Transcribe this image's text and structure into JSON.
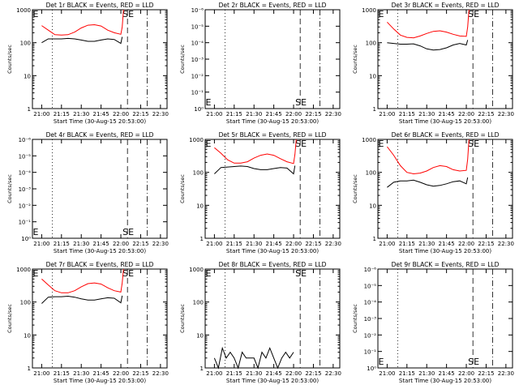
{
  "colors": {
    "events": "#000000",
    "lld": "#ff0000",
    "axis": "#000000"
  },
  "chart_data": [
    {
      "type": "line",
      "title": "Det 1r BLACK = Events, RED = LLD",
      "xlabel": "Start Time (30-Aug-15 20:53:00)",
      "ylabel": "Counts/sec",
      "x_ticks": [
        "21:00",
        "21:15",
        "21:30",
        "21:45",
        "22:00",
        "22:15",
        "22:30"
      ],
      "y_ticks": [
        "1",
        "10",
        "100",
        "1000"
      ],
      "ylim": [
        1,
        1000
      ],
      "log_scale": true,
      "has_data": true,
      "markers": [
        {
          "label": "E",
          "time": "20:53"
        },
        {
          "label": "SE",
          "time": "22:01"
        }
      ],
      "series": [
        {
          "color": "red",
          "x": [
            "21:00",
            "21:05",
            "21:10",
            "21:15",
            "21:20",
            "21:25",
            "21:30",
            "21:35",
            "21:40",
            "21:45",
            "21:50",
            "21:55",
            "22:00",
            "22:01",
            "22:02"
          ],
          "y": [
            330,
            240,
            175,
            170,
            175,
            210,
            280,
            340,
            350,
            320,
            240,
            200,
            180,
            300,
            1000
          ]
        },
        {
          "color": "black",
          "x": [
            "21:00",
            "21:05",
            "21:10",
            "21:15",
            "21:20",
            "21:25",
            "21:30",
            "21:35",
            "21:40",
            "21:45",
            "21:50",
            "21:55",
            "22:00",
            "22:01"
          ],
          "y": [
            100,
            130,
            130,
            130,
            135,
            130,
            120,
            110,
            110,
            120,
            130,
            125,
            95,
            150
          ]
        }
      ]
    },
    {
      "type": "line",
      "title": "Det 2r BLACK = Events, RED = LLD",
      "xlabel": "Start Time (30-Aug-15 20:53:00)",
      "ylabel": "Counts/sec",
      "x_ticks": [
        "21:00",
        "21:15",
        "21:30",
        "21:45",
        "22:00",
        "22:15",
        "22:30"
      ],
      "y_ticks": [
        "10⁰",
        "10⁻¹",
        "10⁻²",
        "10⁻³",
        "10⁻⁴",
        "10⁻⁵",
        "10⁻⁶"
      ],
      "log_scale": true,
      "has_data": false,
      "markers": [
        {
          "label": "E",
          "time": "20:53"
        },
        {
          "label": "SE",
          "time": "22:01"
        }
      ],
      "series": []
    },
    {
      "type": "line",
      "title": "Det 3r BLACK = Events, RED = LLD",
      "xlabel": "Start Time (30-Aug-15 20:53:00)",
      "ylabel": "Counts/sec",
      "x_ticks": [
        "21:00",
        "21:15",
        "21:30",
        "21:45",
        "22:00",
        "22:15",
        "22:30"
      ],
      "y_ticks": [
        "1",
        "10",
        "100",
        "1000"
      ],
      "ylim": [
        1,
        1000
      ],
      "log_scale": true,
      "has_data": true,
      "markers": [
        {
          "label": "E",
          "time": "20:53"
        },
        {
          "label": "SE",
          "time": "22:01"
        }
      ],
      "series": [
        {
          "color": "red",
          "x": [
            "21:00",
            "21:05",
            "21:10",
            "21:15",
            "21:20",
            "21:25",
            "21:30",
            "21:35",
            "21:40",
            "21:45",
            "21:50",
            "21:55",
            "22:00",
            "22:01",
            "22:02"
          ],
          "y": [
            420,
            260,
            170,
            145,
            140,
            160,
            190,
            220,
            230,
            210,
            180,
            160,
            155,
            300,
            1000
          ]
        },
        {
          "color": "black",
          "x": [
            "21:00",
            "21:05",
            "21:10",
            "21:15",
            "21:20",
            "21:25",
            "21:30",
            "21:35",
            "21:40",
            "21:45",
            "21:50",
            "21:55",
            "22:00",
            "22:01"
          ],
          "y": [
            100,
            95,
            90,
            90,
            92,
            80,
            65,
            60,
            62,
            70,
            85,
            95,
            85,
            120
          ]
        }
      ]
    },
    {
      "type": "line",
      "title": "Det 4r BLACK = Events, RED = LLD",
      "xlabel": "Start Time (30-Aug-15 20:53:00)",
      "ylabel": "Counts/sec",
      "x_ticks": [
        "21:00",
        "21:15",
        "21:30",
        "21:45",
        "22:00",
        "22:15",
        "22:30"
      ],
      "y_ticks": [
        "10⁰",
        "10⁻¹",
        "10⁻²",
        "10⁻³",
        "10⁻⁴",
        "10⁻⁵",
        "10⁻⁶"
      ],
      "log_scale": true,
      "has_data": false,
      "markers": [
        {
          "label": "E",
          "time": "20:53"
        },
        {
          "label": "SE",
          "time": "22:01"
        }
      ],
      "series": []
    },
    {
      "type": "line",
      "title": "Det 5r BLACK = Events, RED = LLD",
      "xlabel": "Start Time (30-Aug-15 20:53:00)",
      "ylabel": "Counts/sec",
      "x_ticks": [
        "21:00",
        "21:15",
        "21:30",
        "21:45",
        "22:00",
        "22:15",
        "22:30"
      ],
      "y_ticks": [
        "1",
        "10",
        "100",
        "1000"
      ],
      "ylim": [
        1,
        1000
      ],
      "log_scale": true,
      "has_data": true,
      "markers": [
        {
          "label": "E",
          "time": "20:53"
        },
        {
          "label": "SE",
          "time": "22:01"
        }
      ],
      "series": [
        {
          "color": "red",
          "x": [
            "21:00",
            "21:05",
            "21:10",
            "21:15",
            "21:20",
            "21:25",
            "21:30",
            "21:35",
            "21:40",
            "21:45",
            "21:50",
            "21:55",
            "22:00",
            "22:01",
            "22:02"
          ],
          "y": [
            560,
            380,
            240,
            190,
            190,
            210,
            270,
            330,
            360,
            330,
            260,
            210,
            185,
            350,
            1000
          ]
        },
        {
          "color": "black",
          "x": [
            "21:00",
            "21:05",
            "21:10",
            "21:15",
            "21:20",
            "21:25",
            "21:30",
            "21:35",
            "21:40",
            "21:45",
            "21:50",
            "21:55",
            "22:00",
            "22:01"
          ],
          "y": [
            90,
            140,
            145,
            150,
            155,
            150,
            130,
            120,
            120,
            130,
            140,
            135,
            90,
            160
          ]
        }
      ]
    },
    {
      "type": "line",
      "title": "Det 6r BLACK = Events, RED = LLD",
      "xlabel": "Start Time (30-Aug-15 20:53:00)",
      "ylabel": "Counts/sec",
      "x_ticks": [
        "21:00",
        "21:15",
        "21:30",
        "21:45",
        "22:00",
        "22:15",
        "22:30"
      ],
      "y_ticks": [
        "1",
        "10",
        "100",
        "1000"
      ],
      "ylim": [
        1,
        1000
      ],
      "log_scale": true,
      "has_data": true,
      "markers": [
        {
          "label": "E",
          "time": "20:53"
        },
        {
          "label": "SE",
          "time": "22:01"
        }
      ],
      "series": [
        {
          "color": "red",
          "x": [
            "21:00",
            "21:05",
            "21:10",
            "21:15",
            "21:20",
            "21:25",
            "21:30",
            "21:35",
            "21:40",
            "21:45",
            "21:50",
            "21:55",
            "22:00",
            "22:01",
            "22:02"
          ],
          "y": [
            600,
            330,
            160,
            100,
            90,
            95,
            110,
            140,
            160,
            150,
            120,
            110,
            115,
            250,
            1000
          ]
        },
        {
          "color": "black",
          "x": [
            "21:00",
            "21:05",
            "21:10",
            "21:15",
            "21:20",
            "21:25",
            "21:30",
            "21:35",
            "21:40",
            "21:45",
            "21:50",
            "21:55",
            "22:00",
            "22:01"
          ],
          "y": [
            35,
            50,
            55,
            55,
            58,
            50,
            42,
            38,
            40,
            45,
            52,
            55,
            45,
            70
          ]
        }
      ]
    },
    {
      "type": "line",
      "title": "Det 7r BLACK = Events, RED = LLD",
      "xlabel": "Start Time (30-Aug-15 20:53:00)",
      "ylabel": "Counts/sec",
      "x_ticks": [
        "21:00",
        "21:15",
        "21:30",
        "21:45",
        "22:00",
        "22:15",
        "22:30"
      ],
      "y_ticks": [
        "1",
        "10",
        "100",
        "1000"
      ],
      "ylim": [
        1,
        1000
      ],
      "log_scale": true,
      "has_data": true,
      "markers": [
        {
          "label": "E",
          "time": "20:53"
        },
        {
          "label": "SE",
          "time": "22:01"
        }
      ],
      "series": [
        {
          "color": "red",
          "x": [
            "21:00",
            "21:05",
            "21:10",
            "21:15",
            "21:20",
            "21:25",
            "21:30",
            "21:35",
            "21:40",
            "21:45",
            "21:50",
            "21:55",
            "22:00",
            "22:01",
            "22:02"
          ],
          "y": [
            500,
            330,
            220,
            190,
            190,
            220,
            290,
            360,
            380,
            350,
            270,
            220,
            200,
            380,
            1000
          ]
        },
        {
          "color": "black",
          "x": [
            "21:00",
            "21:05",
            "21:10",
            "21:15",
            "21:20",
            "21:25",
            "21:30",
            "21:35",
            "21:40",
            "21:45",
            "21:50",
            "21:55",
            "22:00",
            "22:01"
          ],
          "y": [
            90,
            140,
            145,
            145,
            150,
            140,
            125,
            115,
            115,
            125,
            135,
            130,
            95,
            155
          ]
        }
      ]
    },
    {
      "type": "line",
      "title": "Det 8r BLACK = Events, RED = LLD",
      "xlabel": "Start Time (30-Aug-15 20:53:00)",
      "ylabel": "Counts/sec",
      "x_ticks": [
        "21:00",
        "21:15",
        "21:30",
        "21:45",
        "22:00",
        "22:15",
        "22:30"
      ],
      "y_ticks": [
        "1",
        "10",
        "100",
        "1000"
      ],
      "ylim": [
        1,
        1000
      ],
      "log_scale": true,
      "has_data": true,
      "markers": [
        {
          "label": "E",
          "time": "20:53"
        },
        {
          "label": "SE",
          "time": "22:01"
        }
      ],
      "series": [
        {
          "color": "black",
          "x": [
            "21:00",
            "21:03",
            "21:06",
            "21:09",
            "21:12",
            "21:15",
            "21:18",
            "21:21",
            "21:24",
            "21:27",
            "21:30",
            "21:33",
            "21:36",
            "21:39",
            "21:42",
            "21:45",
            "21:48",
            "21:51",
            "21:54",
            "21:57",
            "22:00"
          ],
          "y": [
            2,
            1,
            4,
            2,
            3,
            2,
            1,
            3,
            2,
            2,
            2,
            1,
            3,
            2,
            4,
            2,
            1,
            2,
            3,
            2,
            3
          ]
        }
      ]
    },
    {
      "type": "line",
      "title": "Det 9r BLACK = Events, RED = LLD",
      "xlabel": "Start Time (30-Aug-15 20:53:00)",
      "ylabel": "Counts/sec",
      "x_ticks": [
        "21:00",
        "21:15",
        "21:30",
        "21:45",
        "22:00",
        "22:15",
        "22:30"
      ],
      "y_ticks": [
        "10⁰",
        "10⁻¹",
        "10⁻²",
        "10⁻³",
        "10⁻⁴",
        "10⁻⁵",
        "10⁻⁶"
      ],
      "log_scale": true,
      "has_data": false,
      "markers": [
        {
          "label": "E",
          "time": "20:53"
        },
        {
          "label": "SE",
          "time": "22:01"
        }
      ],
      "series": []
    }
  ]
}
